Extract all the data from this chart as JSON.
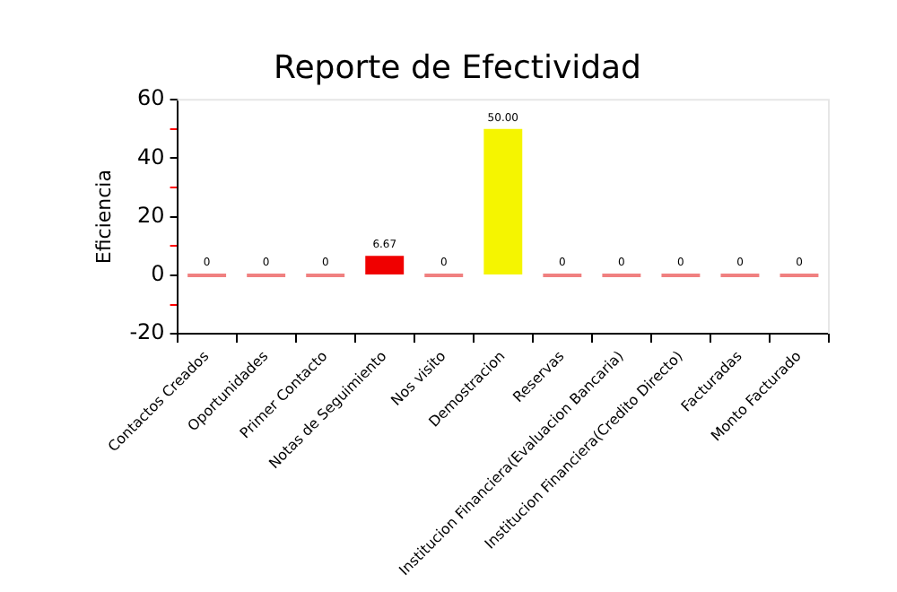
{
  "chart_data": {
    "type": "bar",
    "title": "Reporte de Efectividad",
    "ylabel": "Eficiencia",
    "categories": [
      "Contactos Creados",
      "Oportunidades",
      "Primer Contacto",
      "Notas de Seguimiento",
      "Nos visito",
      "Demostracion",
      "Reservas",
      "Institucion Financiera(Evaluacion Bancaria)",
      "Institucion Financiera(Credito Directo)",
      "Facturadas",
      "Monto Facturado"
    ],
    "values": [
      0,
      0,
      0,
      6.67,
      0,
      50,
      0,
      0,
      0,
      0,
      0
    ],
    "colors": [
      "#f08080",
      "#f08080",
      "#f08080",
      "#f00000",
      "#f08080",
      "#f5f500",
      "#f08080",
      "#f08080",
      "#f08080",
      "#f08080",
      "#f08080"
    ],
    "value_labels": [
      "0",
      "0",
      "0",
      "6.67",
      "0",
      "50.00",
      "0",
      "0",
      "0",
      "0",
      "0"
    ],
    "ylim": [
      -20,
      60
    ],
    "yticks": [
      -20,
      {
        "value": -10,
        "label": null
      },
      0,
      {
        "value": 10,
        "label": null
      },
      20,
      {
        "value": 30,
        "label": null
      },
      40,
      {
        "value": 50,
        "label": null
      },
      60
    ],
    "grid": false,
    "legend": false
  }
}
